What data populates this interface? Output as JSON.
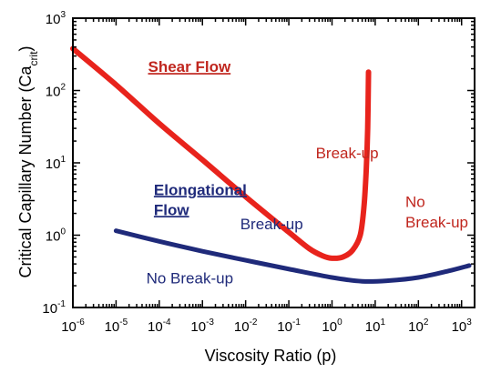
{
  "chart_data": {
    "type": "line",
    "title": "",
    "xlabel": "Viscosity Ratio (p)",
    "ylabel_main": "Critical Capillary Number (Ca",
    "ylabel_sub": "crit",
    "ylabel_end": ")",
    "xscale": "log",
    "yscale": "log",
    "xlim": [
      1e-06,
      2000
    ],
    "ylim": [
      0.1,
      1000
    ],
    "grid": false,
    "x_ticks": [
      {
        "base": "10",
        "exp": "-6",
        "value": 1e-06
      },
      {
        "base": "10",
        "exp": "-5",
        "value": 1e-05
      },
      {
        "base": "10",
        "exp": "-4",
        "value": 0.0001
      },
      {
        "base": "10",
        "exp": "-3",
        "value": 0.001
      },
      {
        "base": "10",
        "exp": "-2",
        "value": 0.01
      },
      {
        "base": "10",
        "exp": "-1",
        "value": 0.1
      },
      {
        "base": "10",
        "exp": "0",
        "value": 1
      },
      {
        "base": "10",
        "exp": "1",
        "value": 10
      },
      {
        "base": "10",
        "exp": "2",
        "value": 100
      },
      {
        "base": "10",
        "exp": "3",
        "value": 1000
      }
    ],
    "y_ticks": [
      {
        "base": "10",
        "exp": "-1",
        "value": 0.1
      },
      {
        "base": "10",
        "exp": "0",
        "value": 1
      },
      {
        "base": "10",
        "exp": "1",
        "value": 10
      },
      {
        "base": "10",
        "exp": "2",
        "value": 100
      },
      {
        "base": "10",
        "exp": "3",
        "value": 1000
      }
    ],
    "series": [
      {
        "name": "Shear Flow",
        "color": "#e8231c",
        "points": [
          [
            1e-06,
            380
          ],
          [
            1e-05,
            120
          ],
          [
            0.0001,
            35
          ],
          [
            0.001,
            11
          ],
          [
            0.01,
            3.4
          ],
          [
            0.1,
            1.1
          ],
          [
            0.3,
            0.65
          ],
          [
            0.6,
            0.52
          ],
          [
            1.0,
            0.48
          ],
          [
            1.8,
            0.5
          ],
          [
            3.0,
            0.62
          ],
          [
            4.5,
            1.0
          ],
          [
            5.5,
            2.5
          ],
          [
            6.2,
            8
          ],
          [
            6.7,
            30
          ],
          [
            7.0,
            180
          ]
        ]
      },
      {
        "name": "Elongational Flow",
        "color": "#1f2a7a",
        "points": [
          [
            1e-05,
            1.15
          ],
          [
            0.0001,
            0.82
          ],
          [
            0.001,
            0.6
          ],
          [
            0.01,
            0.45
          ],
          [
            0.1,
            0.34
          ],
          [
            1,
            0.26
          ],
          [
            5,
            0.23
          ],
          [
            20,
            0.235
          ],
          [
            100,
            0.26
          ],
          [
            500,
            0.32
          ],
          [
            1500,
            0.38
          ]
        ]
      }
    ],
    "annotations": [
      {
        "text": "Shear Flow",
        "color": "#c0261e",
        "style": "bold",
        "x": 5.5e-05,
        "y": 180
      },
      {
        "text": "Break-up",
        "color": "#c0261e",
        "style": "normal",
        "x": 0.42,
        "y": 11.5
      },
      {
        "text": "No",
        "color": "#c0261e",
        "style": "normal",
        "x": 50,
        "y": 2.45
      },
      {
        "text": "Break-up",
        "color": "#c0261e",
        "style": "normal",
        "x": 50,
        "y": 1.28
      },
      {
        "text": "Elongational",
        "color": "#1f2a7a",
        "style": "bold",
        "x": 7.5e-05,
        "y": 3.6
      },
      {
        "text": "Flow",
        "color": "#1f2a7a",
        "style": "bold",
        "x": 7.5e-05,
        "y": 1.9
      },
      {
        "text": "Break-up",
        "color": "#1f2a7a",
        "style": "normal",
        "x": 0.0075,
        "y": 1.2
      },
      {
        "text": "No Break-up",
        "color": "#1f2a7a",
        "style": "normal",
        "x": 5e-05,
        "y": 0.215
      }
    ]
  }
}
